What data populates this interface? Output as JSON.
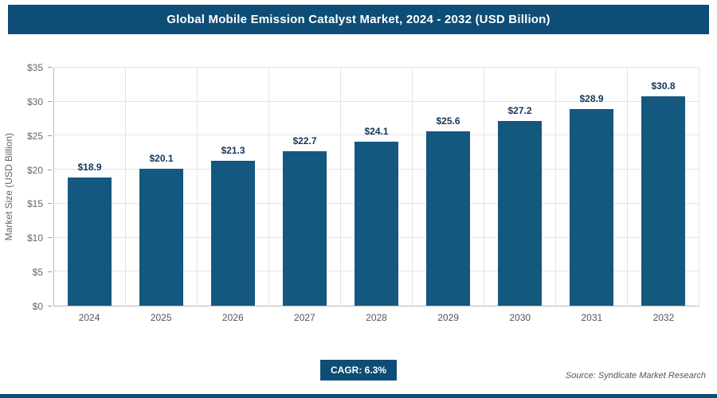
{
  "header": {
    "title": "Global Mobile Emission Catalyst Market, 2024 - 2032 (USD Billion)"
  },
  "chart_data": {
    "type": "bar",
    "title": "Global Mobile Emission Catalyst Market, 2024 - 2032 (USD Billion)",
    "categories": [
      "2024",
      "2025",
      "2026",
      "2027",
      "2028",
      "2029",
      "2030",
      "2031",
      "2032"
    ],
    "values": [
      18.9,
      20.1,
      21.3,
      22.7,
      24.1,
      25.6,
      27.2,
      28.9,
      30.8
    ],
    "value_labels": [
      "$18.9",
      "$20.1",
      "$21.3",
      "$22.7",
      "$24.1",
      "$25.6",
      "$27.2",
      "$28.9",
      "$30.8"
    ],
    "xlabel": "",
    "ylabel": "Market Size (USD Billion)",
    "ylim": [
      0,
      35
    ],
    "yticks": [
      {
        "value": 0,
        "label": "$0"
      },
      {
        "value": 5,
        "label": "$5"
      },
      {
        "value": 10,
        "label": "$10"
      },
      {
        "value": 15,
        "label": "$15"
      },
      {
        "value": 20,
        "label": "$20"
      },
      {
        "value": 25,
        "label": "$25"
      },
      {
        "value": 30,
        "label": "$30"
      },
      {
        "value": 35,
        "label": "$35"
      }
    ],
    "grid": true,
    "legend": "none",
    "bar_color": "#15587f"
  },
  "footer": {
    "cagr_label": "CAGR: 6.3%",
    "source": "Source: Syndicate Market Research"
  },
  "colors": {
    "header_bg": "#0d4d76",
    "bar": "#15587f",
    "accent": "#0d4d76",
    "value_label": "#14365c"
  }
}
